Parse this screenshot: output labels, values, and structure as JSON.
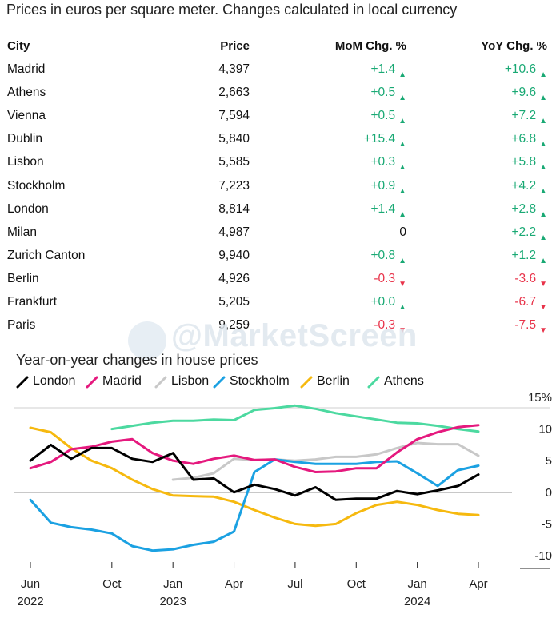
{
  "subtitle": "Prices in euros per square meter. Changes calculated in local currency",
  "table": {
    "headers": {
      "city": "City",
      "price": "Price",
      "mom": "MoM Chg. %",
      "yoy": "YoY Chg. %"
    },
    "rows": [
      {
        "city": "Madrid",
        "price": "4,397",
        "mom": "+1.4",
        "mom_dir": "up",
        "yoy": "+10.6",
        "yoy_dir": "up"
      },
      {
        "city": "Athens",
        "price": "2,663",
        "mom": "+0.5",
        "mom_dir": "up",
        "yoy": "+9.6",
        "yoy_dir": "up"
      },
      {
        "city": "Vienna",
        "price": "7,594",
        "mom": "+0.5",
        "mom_dir": "up",
        "yoy": "+7.2",
        "yoy_dir": "up"
      },
      {
        "city": "Dublin",
        "price": "5,840",
        "mom": "+15.4",
        "mom_dir": "up",
        "yoy": "+6.8",
        "yoy_dir": "up"
      },
      {
        "city": "Lisbon",
        "price": "5,585",
        "mom": "+0.3",
        "mom_dir": "up",
        "yoy": "+5.8",
        "yoy_dir": "up"
      },
      {
        "city": "Stockholm",
        "price": "7,223",
        "mom": "+0.9",
        "mom_dir": "up",
        "yoy": "+4.2",
        "yoy_dir": "up"
      },
      {
        "city": "London",
        "price": "8,814",
        "mom": "+1.4",
        "mom_dir": "up",
        "yoy": "+2.8",
        "yoy_dir": "up"
      },
      {
        "city": "Milan",
        "price": "4,987",
        "mom": "0",
        "mom_dir": "none",
        "yoy": "+2.2",
        "yoy_dir": "up"
      },
      {
        "city": "Zurich Canton",
        "price": "9,940",
        "mom": "+0.8",
        "mom_dir": "up",
        "yoy": "+1.2",
        "yoy_dir": "up"
      },
      {
        "city": "Berlin",
        "price": "4,926",
        "mom": "-0.3",
        "mom_dir": "down",
        "yoy": "-3.6",
        "yoy_dir": "down"
      },
      {
        "city": "Frankfurt",
        "price": "5,205",
        "mom": "+0.0",
        "mom_dir": "up",
        "yoy": "-6.7",
        "yoy_dir": "down"
      },
      {
        "city": "Paris",
        "price": "9,259",
        "mom": "-0.3",
        "mom_dir": "down",
        "yoy": "-7.5",
        "yoy_dir": "down"
      }
    ]
  },
  "watermark": "@MarketScreen",
  "colors": {
    "up": "#19a974",
    "down": "#e8334a"
  },
  "chart_data": {
    "type": "line",
    "title": "Year-on-year changes in house prices",
    "x": [
      "2022-06",
      "2022-07",
      "2022-08",
      "2022-09",
      "2022-10",
      "2022-11",
      "2022-12",
      "2023-01",
      "2023-02",
      "2023-03",
      "2023-04",
      "2023-05",
      "2023-06",
      "2023-07",
      "2023-08",
      "2023-09",
      "2023-10",
      "2023-11",
      "2023-12",
      "2024-01",
      "2024-02",
      "2024-03",
      "2024-04"
    ],
    "x_tick_labels": [
      {
        "month": "2022-06",
        "line1": "Jun",
        "line2": "2022"
      },
      {
        "month": "2022-10",
        "line1": "Oct",
        "line2": ""
      },
      {
        "month": "2023-01",
        "line1": "Jan",
        "line2": "2023"
      },
      {
        "month": "2023-04",
        "line1": "Apr",
        "line2": ""
      },
      {
        "month": "2023-07",
        "line1": "Jul",
        "line2": ""
      },
      {
        "month": "2023-10",
        "line1": "Oct",
        "line2": ""
      },
      {
        "month": "2024-01",
        "line1": "Jan",
        "line2": "2024"
      },
      {
        "month": "2024-04",
        "line1": "Apr",
        "line2": ""
      }
    ],
    "ylim": [
      -10,
      15
    ],
    "yticks": [
      15,
      10,
      5,
      0,
      -5,
      -10
    ],
    "ytick_labels": [
      "15%",
      "10",
      "5",
      "0",
      "-5",
      "-10"
    ],
    "legend_position": "top",
    "series": [
      {
        "name": "London",
        "color": "#000000",
        "values": [
          5.0,
          7.5,
          5.3,
          7.0,
          7.0,
          5.3,
          4.8,
          6.2,
          2.0,
          2.2,
          0.0,
          1.2,
          0.5,
          -0.5,
          0.8,
          -1.2,
          -1.0,
          -1.0,
          0.2,
          -0.3,
          0.3,
          1.0,
          2.8
        ]
      },
      {
        "name": "Madrid",
        "color": "#e5197e",
        "values": [
          3.8,
          4.8,
          6.8,
          7.2,
          8.0,
          8.4,
          6.2,
          5.0,
          4.5,
          5.3,
          5.8,
          5.1,
          5.2,
          4.0,
          3.2,
          3.3,
          3.8,
          3.8,
          6.3,
          8.4,
          9.5,
          10.3,
          10.6
        ]
      },
      {
        "name": "Lisbon",
        "color": "#c8c8c8",
        "values": [
          null,
          null,
          null,
          null,
          null,
          null,
          null,
          2.0,
          2.3,
          3.0,
          5.3,
          5.1,
          5.2,
          5.0,
          5.2,
          5.6,
          5.6,
          6.0,
          7.0,
          7.8,
          7.6,
          7.6,
          5.8
        ]
      },
      {
        "name": "Stockholm",
        "color": "#1ba1e2",
        "values": [
          -1.2,
          -4.8,
          -5.5,
          -5.9,
          -6.5,
          -8.5,
          -9.2,
          -9.0,
          -8.3,
          -7.8,
          -6.2,
          3.2,
          5.2,
          4.8,
          4.5,
          4.5,
          4.5,
          4.8,
          4.9,
          3.0,
          1.0,
          3.5,
          4.2
        ]
      },
      {
        "name": "Berlin",
        "color": "#f6b90f",
        "values": [
          10.2,
          9.5,
          7.0,
          5.0,
          3.8,
          2.0,
          0.5,
          -0.5,
          -0.6,
          -0.7,
          -1.5,
          -2.8,
          -4.0,
          -5.0,
          -5.3,
          -5.0,
          -3.3,
          -2.0,
          -1.5,
          -2.0,
          -2.8,
          -3.4,
          -3.6
        ]
      },
      {
        "name": "Athens",
        "color": "#4cd9a0",
        "values": [
          null,
          null,
          null,
          null,
          10.0,
          10.5,
          11.0,
          11.3,
          11.3,
          11.5,
          11.4,
          13.0,
          13.3,
          13.7,
          13.2,
          12.5,
          12.0,
          11.5,
          11.0,
          10.9,
          10.5,
          10.0,
          9.6
        ]
      }
    ]
  }
}
